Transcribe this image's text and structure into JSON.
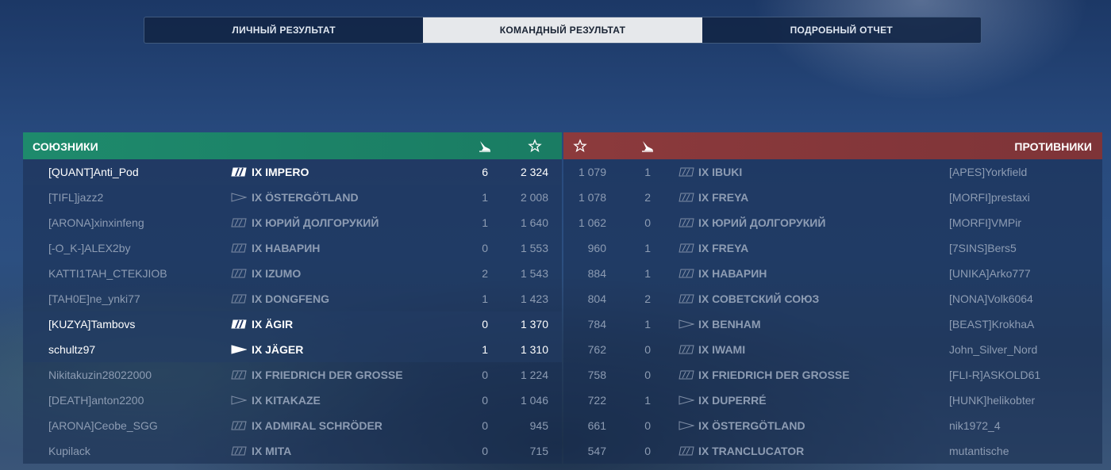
{
  "tabs": [
    {
      "label": "ЛИЧНЫЙ РЕЗУЛЬТАТ",
      "active": false
    },
    {
      "label": "КОМАНДНЫЙ РЕЗУЛЬТАТ",
      "active": true
    },
    {
      "label": "ПОДРОБНЫЙ ОТЧЕТ",
      "active": false
    }
  ],
  "allies": {
    "title": "СОЮЗНИКИ",
    "header_icons": [
      "ship-sunk-icon",
      "star-icon"
    ],
    "color": "#1e8a6c",
    "rows": [
      {
        "player": "[QUANT]Anti_Pod",
        "ship_class": "battleship-icon",
        "ship": "IX IMPERO",
        "kills": "6",
        "score": "2 324",
        "highlight": true
      },
      {
        "player": "[TIFL]jazz2",
        "ship_class": "destroyer-icon",
        "ship": "IX ÖSTERGÖTLAND",
        "kills": "1",
        "score": "2 008",
        "highlight": false
      },
      {
        "player": "[ARONA]xinxinfeng",
        "ship_class": "cruiser-icon",
        "ship": "IX ЮРИЙ ДОЛГОРУКИЙ",
        "kills": "1",
        "score": "1 640",
        "highlight": false
      },
      {
        "player": "[-O_K-]ALEX2by",
        "ship_class": "cruiser-icon",
        "ship": "IX НАВАРИН",
        "kills": "0",
        "score": "1 553",
        "highlight": false
      },
      {
        "player": "KATTI1TAH_CTEKJIOB",
        "ship_class": "cruiser-icon",
        "ship": "IX IZUMO",
        "kills": "2",
        "score": "1 543",
        "highlight": false
      },
      {
        "player": "[TAH0E]ne_ynki77",
        "ship_class": "cruiser-icon",
        "ship": "IX DONGFENG",
        "kills": "1",
        "score": "1 423",
        "highlight": false
      },
      {
        "player": "[KUZYA]Tambovs",
        "ship_class": "battleship-icon",
        "ship": "IX ÄGIR",
        "kills": "0",
        "score": "1 370",
        "highlight": true
      },
      {
        "player": "schultz97",
        "ship_class": "destroyer-icon",
        "ship": "IX JÄGER",
        "kills": "1",
        "score": "1 310",
        "highlight": true
      },
      {
        "player": "Nikitakuzin28022000",
        "ship_class": "cruiser-icon",
        "ship": "IX FRIEDRICH DER GROSSE",
        "kills": "0",
        "score": "1 224",
        "highlight": false
      },
      {
        "player": "[DEATH]anton2200",
        "ship_class": "destroyer-icon",
        "ship": "IX KITAKAZE",
        "kills": "0",
        "score": "1 046",
        "highlight": false
      },
      {
        "player": "[ARONA]Ceobe_SGG",
        "ship_class": "cruiser-icon",
        "ship": "IX ADMIRAL SCHRÖDER",
        "kills": "0",
        "score": "945",
        "highlight": false
      },
      {
        "player": "Kupilack",
        "ship_class": "cruiser-icon",
        "ship": "IX MITA",
        "kills": "0",
        "score": "715",
        "highlight": false
      }
    ]
  },
  "enemies": {
    "title": "ПРОТИВНИКИ",
    "header_icons": [
      "star-icon",
      "ship-sunk-icon"
    ],
    "color": "#8c3a3c",
    "rows": [
      {
        "score": "1 079",
        "kills": "1",
        "ship_class": "cruiser-icon",
        "ship": "IX IBUKI",
        "player": "[APES]Yorkfield"
      },
      {
        "score": "1 078",
        "kills": "2",
        "ship_class": "cruiser-icon",
        "ship": "IX FREYA",
        "player": "[MORFI]prestaxi"
      },
      {
        "score": "1 062",
        "kills": "0",
        "ship_class": "cruiser-icon",
        "ship": "IX ЮРИЙ ДОЛГОРУКИЙ",
        "player": "[MORFI]VMPir"
      },
      {
        "score": "960",
        "kills": "1",
        "ship_class": "cruiser-icon",
        "ship": "IX FREYA",
        "player": "[7SINS]Bers5"
      },
      {
        "score": "884",
        "kills": "1",
        "ship_class": "cruiser-icon",
        "ship": "IX НАВАРИН",
        "player": "[UNIKA]Arko777"
      },
      {
        "score": "804",
        "kills": "2",
        "ship_class": "cruiser-icon",
        "ship": "IX СОВЕТСКИЙ СОЮЗ",
        "player": "[NONA]Volk6064"
      },
      {
        "score": "784",
        "kills": "1",
        "ship_class": "destroyer-icon",
        "ship": "IX BENHAM",
        "player": "[BEAST]KrokhaA"
      },
      {
        "score": "762",
        "kills": "0",
        "ship_class": "cruiser-icon",
        "ship": "IX IWAMI",
        "player": "John_Silver_Nord"
      },
      {
        "score": "758",
        "kills": "0",
        "ship_class": "cruiser-icon",
        "ship": "IX FRIEDRICH DER GROSSE",
        "player": "[FLI-R]ASKOLD61"
      },
      {
        "score": "722",
        "kills": "1",
        "ship_class": "destroyer-icon",
        "ship": "IX DUPERRÉ",
        "player": "[HUNK]helikobter"
      },
      {
        "score": "661",
        "kills": "0",
        "ship_class": "destroyer-icon",
        "ship": "IX ÖSTERGÖTLAND",
        "player": "nik1972_4"
      },
      {
        "score": "547",
        "kills": "0",
        "ship_class": "cruiser-icon",
        "ship": "IX TRANCLUCATOR",
        "player": "mutantische"
      }
    ]
  }
}
